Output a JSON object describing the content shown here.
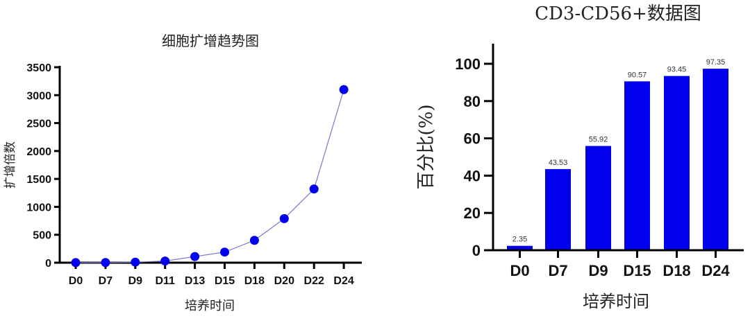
{
  "charts": {
    "left": {
      "title": "细胞扩增趋势图",
      "xlabel": "培养时间",
      "ylabel": "扩增倍数",
      "yticks": [
        "0",
        "500",
        "1000",
        "1500",
        "2000",
        "2500",
        "3000",
        "3500"
      ],
      "xticks": [
        "D0",
        "D7",
        "D9",
        "D11",
        "D13",
        "D15",
        "D18",
        "D20",
        "D22",
        "D24"
      ]
    },
    "right": {
      "title": "CD3-CD56+数据图",
      "xlabel": "培养时间",
      "ylabel": "百分比(%)",
      "yticks": [
        "0",
        "20",
        "40",
        "60",
        "80",
        "100"
      ],
      "xticks": [
        "D0",
        "D7",
        "D9",
        "D15",
        "D18",
        "D24"
      ],
      "labels": [
        "2.35",
        "43.53",
        "55.92",
        "90.57",
        "93.45",
        "97.35"
      ]
    }
  },
  "colors": {
    "marker": "#0000ee",
    "line": "#7777cc",
    "bar": "#0000ee",
    "axis": "#000000"
  },
  "chart_data": [
    {
      "type": "line",
      "title": "细胞扩增趋势图",
      "xlabel": "培养时间",
      "ylabel": "扩增倍数",
      "categories": [
        "D0",
        "D7",
        "D9",
        "D11",
        "D13",
        "D15",
        "D18",
        "D20",
        "D22",
        "D24"
      ],
      "series": [
        {
          "name": "扩增倍数",
          "values": [
            1,
            3,
            10,
            30,
            110,
            190,
            400,
            790,
            1320,
            3100
          ]
        }
      ],
      "ylim": [
        0,
        3500
      ],
      "yticks": [
        0,
        500,
        1000,
        1500,
        2000,
        2500,
        3000,
        3500
      ],
      "grid": false,
      "legend": "none"
    },
    {
      "type": "bar",
      "title": "CD3-CD56+数据图",
      "xlabel": "培养时间",
      "ylabel": "百分比(%)",
      "categories": [
        "D0",
        "D7",
        "D9",
        "D15",
        "D18",
        "D24"
      ],
      "values": [
        2.35,
        43.53,
        55.92,
        90.57,
        93.45,
        97.35
      ],
      "ylim": [
        0,
        110
      ],
      "yticks": [
        0,
        20,
        40,
        60,
        80,
        100
      ],
      "grid": false,
      "legend": "none",
      "data_labels": true
    }
  ]
}
